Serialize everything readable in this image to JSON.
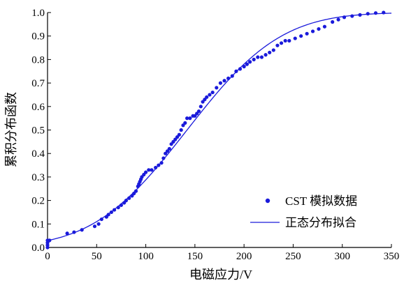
{
  "chart_data": {
    "type": "scatter",
    "title": "",
    "xlabel": "电磁应力/V",
    "ylabel": "累积分布函数",
    "xlim": [
      0,
      350
    ],
    "ylim": [
      0.0,
      1.0
    ],
    "x_ticks": [
      "0",
      "50",
      "100",
      "150",
      "200",
      "250",
      "300",
      "350"
    ],
    "y_ticks": [
      "0.0",
      "0.1",
      "0.2",
      "0.3",
      "0.4",
      "0.5",
      "0.6",
      "0.7",
      "0.8",
      "0.9",
      "1.0"
    ],
    "grid": false,
    "legend_position": "bottom-right",
    "colors": {
      "series": "#1a1adb",
      "axis": "#000000"
    },
    "series": [
      {
        "name": "CST 模拟数据",
        "kind": "scatter",
        "points": [
          [
            0,
            0.0
          ],
          [
            0,
            0.01
          ],
          [
            0,
            0.02
          ],
          [
            0,
            0.03
          ],
          [
            2,
            0.03
          ],
          [
            20,
            0.06
          ],
          [
            27,
            0.065
          ],
          [
            35,
            0.075
          ],
          [
            48,
            0.09
          ],
          [
            52,
            0.1
          ],
          [
            55,
            0.12
          ],
          [
            60,
            0.13
          ],
          [
            62,
            0.14
          ],
          [
            65,
            0.15
          ],
          [
            68,
            0.16
          ],
          [
            72,
            0.17
          ],
          [
            75,
            0.18
          ],
          [
            78,
            0.19
          ],
          [
            80,
            0.2
          ],
          [
            83,
            0.21
          ],
          [
            86,
            0.22
          ],
          [
            88,
            0.23
          ],
          [
            90,
            0.24
          ],
          [
            92,
            0.26
          ],
          [
            93,
            0.27
          ],
          [
            94,
            0.28
          ],
          [
            95,
            0.29
          ],
          [
            96,
            0.3
          ],
          [
            98,
            0.31
          ],
          [
            100,
            0.32
          ],
          [
            103,
            0.33
          ],
          [
            106,
            0.33
          ],
          [
            110,
            0.34
          ],
          [
            113,
            0.35
          ],
          [
            116,
            0.36
          ],
          [
            118,
            0.38
          ],
          [
            120,
            0.4
          ],
          [
            122,
            0.41
          ],
          [
            124,
            0.42
          ],
          [
            126,
            0.44
          ],
          [
            128,
            0.45
          ],
          [
            130,
            0.46
          ],
          [
            132,
            0.47
          ],
          [
            134,
            0.48
          ],
          [
            136,
            0.5
          ],
          [
            138,
            0.52
          ],
          [
            140,
            0.53
          ],
          [
            142,
            0.55
          ],
          [
            145,
            0.55
          ],
          [
            148,
            0.56
          ],
          [
            150,
            0.56
          ],
          [
            152,
            0.57
          ],
          [
            154,
            0.58
          ],
          [
            156,
            0.6
          ],
          [
            158,
            0.62
          ],
          [
            160,
            0.63
          ],
          [
            162,
            0.64
          ],
          [
            165,
            0.65
          ],
          [
            168,
            0.66
          ],
          [
            172,
            0.68
          ],
          [
            176,
            0.7
          ],
          [
            180,
            0.71
          ],
          [
            184,
            0.72
          ],
          [
            188,
            0.73
          ],
          [
            192,
            0.75
          ],
          [
            196,
            0.76
          ],
          [
            200,
            0.77
          ],
          [
            203,
            0.78
          ],
          [
            206,
            0.79
          ],
          [
            210,
            0.8
          ],
          [
            214,
            0.81
          ],
          [
            218,
            0.81
          ],
          [
            222,
            0.82
          ],
          [
            226,
            0.83
          ],
          [
            230,
            0.84
          ],
          [
            234,
            0.86
          ],
          [
            238,
            0.87
          ],
          [
            242,
            0.88
          ],
          [
            246,
            0.88
          ],
          [
            252,
            0.89
          ],
          [
            258,
            0.9
          ],
          [
            264,
            0.91
          ],
          [
            270,
            0.92
          ],
          [
            276,
            0.93
          ],
          [
            282,
            0.94
          ],
          [
            290,
            0.96
          ],
          [
            296,
            0.97
          ],
          [
            302,
            0.98
          ],
          [
            310,
            0.985
          ],
          [
            318,
            0.99
          ],
          [
            326,
            0.995
          ],
          [
            334,
            0.998
          ],
          [
            342,
            1.0
          ]
        ]
      },
      {
        "name": "正态分布拟合",
        "kind": "line",
        "distribution": "normal",
        "mean": 142,
        "std": 75
      }
    ]
  }
}
